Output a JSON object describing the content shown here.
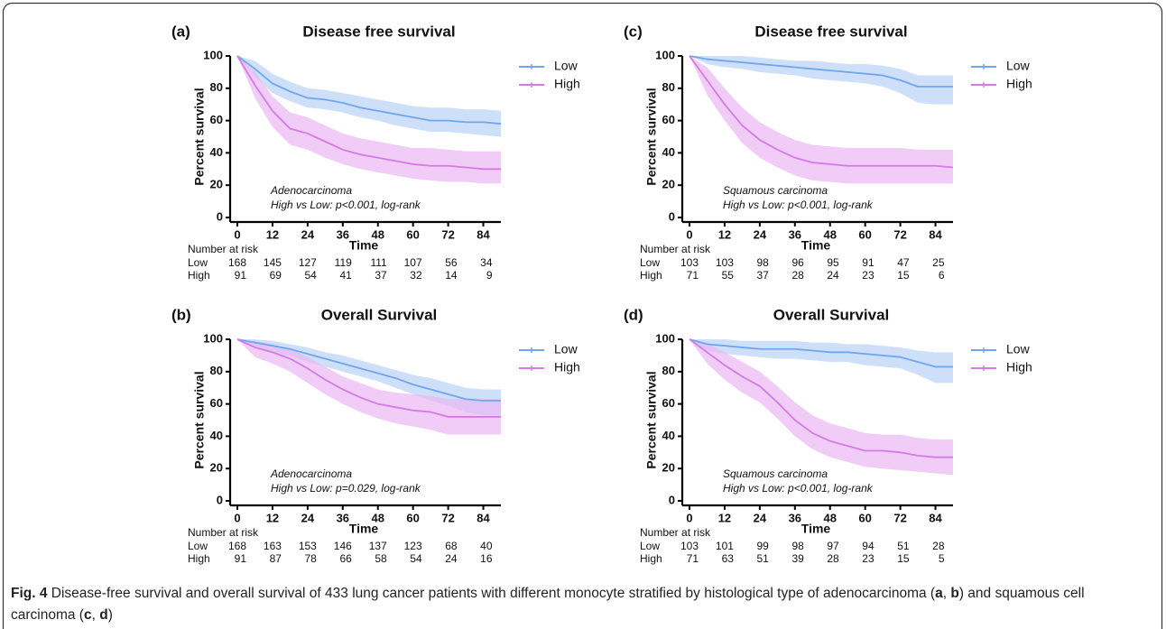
{
  "chart_data": [
    {
      "type": "line",
      "panel": "(a)",
      "title": "Disease free survival",
      "xlabel": "Time",
      "ylabel": "Percent survival",
      "annotations": [
        "Adenocarcinoma",
        "High vs Low: p<0.001, log-rank"
      ],
      "x": [
        0,
        6,
        12,
        18,
        24,
        30,
        36,
        42,
        48,
        54,
        60,
        66,
        72,
        78,
        84,
        90
      ],
      "xlim": [
        0,
        90
      ],
      "xticks": [
        0,
        12,
        24,
        36,
        48,
        60,
        72,
        84
      ],
      "ylim": [
        0,
        100
      ],
      "yticks": [
        0,
        20,
        40,
        60,
        80,
        100
      ],
      "legend": "right-outside",
      "series": [
        {
          "name": "Low",
          "color": "#6ea6ef",
          "band_color": "#b9d3f6",
          "values": [
            100,
            92,
            83,
            78,
            74,
            73,
            71,
            68,
            66,
            64,
            62,
            60,
            60,
            59,
            59,
            58
          ],
          "upper": [
            100,
            97,
            89,
            84,
            80,
            79,
            77,
            75,
            73,
            71,
            69,
            68,
            68,
            67,
            67,
            66
          ],
          "lower": [
            100,
            87,
            77,
            72,
            68,
            67,
            65,
            62,
            60,
            57,
            55,
            53,
            53,
            52,
            51,
            50
          ]
        },
        {
          "name": "High",
          "color": "#d47be6",
          "band_color": "#eab6f4",
          "values": [
            100,
            82,
            66,
            55,
            52,
            47,
            42,
            39,
            37,
            35,
            33,
            32,
            32,
            31,
            30,
            30
          ],
          "upper": [
            100,
            90,
            75,
            65,
            62,
            57,
            52,
            49,
            47,
            45,
            43,
            43,
            42,
            41,
            41,
            41
          ],
          "lower": [
            100,
            74,
            56,
            45,
            42,
            37,
            33,
            30,
            28,
            26,
            24,
            23,
            22,
            22,
            21,
            21
          ]
        }
      ],
      "risk_table": {
        "label": "Number at risk",
        "rows": [
          {
            "name": "Low",
            "values": [
              168,
              145,
              127,
              119,
              111,
              107,
              56,
              34
            ]
          },
          {
            "name": "High",
            "values": [
              91,
              69,
              54,
              41,
              37,
              32,
              14,
              9
            ]
          }
        ]
      }
    },
    {
      "type": "line",
      "panel": "(b)",
      "title": "Overall Survival",
      "xlabel": "Time",
      "ylabel": "Percent survival",
      "annotations": [
        "Adenocarcinoma",
        "High vs Low: p=0.029, log-rank"
      ],
      "x": [
        0,
        6,
        12,
        18,
        24,
        30,
        36,
        42,
        48,
        54,
        60,
        66,
        72,
        78,
        84,
        90
      ],
      "xlim": [
        0,
        90
      ],
      "xticks": [
        0,
        12,
        24,
        36,
        48,
        60,
        72,
        84
      ],
      "ylim": [
        0,
        100
      ],
      "yticks": [
        0,
        20,
        40,
        60,
        80,
        100
      ],
      "legend": "right-outside",
      "series": [
        {
          "name": "Low",
          "color": "#6ea6ef",
          "band_color": "#b9d3f6",
          "values": [
            100,
            98,
            96,
            94,
            91,
            88,
            85,
            82,
            79,
            76,
            72,
            69,
            66,
            63,
            62,
            62
          ],
          "upper": [
            100,
            100,
            99,
            97,
            95,
            92,
            90,
            87,
            84,
            81,
            78,
            76,
            73,
            70,
            69,
            69
          ],
          "lower": [
            100,
            95,
            92,
            90,
            86,
            83,
            80,
            77,
            74,
            70,
            66,
            62,
            59,
            55,
            53,
            53
          ]
        },
        {
          "name": "High",
          "color": "#d47be6",
          "band_color": "#eab6f4",
          "values": [
            100,
            95,
            92,
            88,
            82,
            75,
            69,
            64,
            60,
            58,
            56,
            55,
            52,
            52,
            52,
            52
          ],
          "upper": [
            100,
            99,
            97,
            94,
            89,
            83,
            77,
            73,
            69,
            67,
            66,
            65,
            63,
            63,
            63,
            63
          ],
          "lower": [
            100,
            89,
            85,
            80,
            73,
            66,
            60,
            55,
            51,
            48,
            46,
            44,
            41,
            41,
            41,
            41
          ]
        }
      ],
      "risk_table": {
        "label": "Number at risk",
        "rows": [
          {
            "name": "Low",
            "values": [
              168,
              163,
              153,
              146,
              137,
              123,
              68,
              40
            ]
          },
          {
            "name": "High",
            "values": [
              91,
              87,
              78,
              66,
              58,
              54,
              24,
              16
            ]
          }
        ]
      }
    },
    {
      "type": "line",
      "panel": "(c)",
      "title": "Disease free survival",
      "xlabel": "Time",
      "ylabel": "Percent survival",
      "annotations": [
        "Squamous carcinoma",
        "High vs Low: p<0.001, log-rank"
      ],
      "x": [
        0,
        6,
        12,
        18,
        24,
        30,
        36,
        42,
        48,
        54,
        60,
        66,
        72,
        78,
        84,
        90
      ],
      "xlim": [
        0,
        90
      ],
      "xticks": [
        0,
        12,
        24,
        36,
        48,
        60,
        72,
        84
      ],
      "ylim": [
        0,
        100
      ],
      "yticks": [
        0,
        20,
        40,
        60,
        80,
        100
      ],
      "legend": "right-outside",
      "series": [
        {
          "name": "Low",
          "color": "#6ea6ef",
          "band_color": "#b9d3f6",
          "values": [
            100,
            98,
            97,
            96,
            95,
            94,
            93,
            92,
            91,
            90,
            89,
            88,
            85,
            81,
            81,
            81
          ],
          "upper": [
            100,
            100,
            100,
            100,
            99,
            98,
            97,
            97,
            96,
            95,
            95,
            94,
            92,
            88,
            88,
            88
          ],
          "lower": [
            100,
            95,
            93,
            92,
            90,
            89,
            88,
            86,
            85,
            84,
            83,
            81,
            77,
            71,
            70,
            70
          ]
        },
        {
          "name": "High",
          "color": "#d47be6",
          "band_color": "#eab6f4",
          "values": [
            100,
            85,
            70,
            57,
            48,
            42,
            37,
            34,
            33,
            32,
            32,
            32,
            32,
            32,
            32,
            31
          ],
          "upper": [
            100,
            93,
            80,
            68,
            59,
            53,
            48,
            45,
            44,
            43,
            43,
            43,
            43,
            42,
            42,
            42
          ],
          "lower": [
            100,
            76,
            60,
            46,
            37,
            31,
            26,
            23,
            22,
            21,
            21,
            21,
            21,
            21,
            21,
            21
          ]
        }
      ],
      "risk_table": {
        "label": "Number at risk",
        "rows": [
          {
            "name": "Low",
            "values": [
              103,
              103,
              98,
              96,
              95,
              91,
              47,
              25
            ]
          },
          {
            "name": "High",
            "values": [
              71,
              55,
              37,
              28,
              24,
              23,
              15,
              6
            ]
          }
        ]
      }
    },
    {
      "type": "line",
      "panel": "(d)",
      "title": "Overall Survival",
      "xlabel": "Time",
      "ylabel": "Percent survival",
      "annotations": [
        "Squamous carcinoma",
        "High vs Low: p<0.001, log-rank"
      ],
      "x": [
        0,
        6,
        12,
        18,
        24,
        30,
        36,
        42,
        48,
        54,
        60,
        66,
        72,
        78,
        84,
        90
      ],
      "xlim": [
        0,
        90
      ],
      "xticks": [
        0,
        12,
        24,
        36,
        48,
        60,
        72,
        84
      ],
      "ylim": [
        0,
        100
      ],
      "yticks": [
        0,
        20,
        40,
        60,
        80,
        100
      ],
      "legend": "right-outside",
      "series": [
        {
          "name": "Low",
          "color": "#6ea6ef",
          "band_color": "#b9d3f6",
          "values": [
            100,
            97,
            96,
            95,
            94,
            94,
            94,
            93,
            92,
            92,
            91,
            90,
            89,
            86,
            83,
            83
          ],
          "upper": [
            100,
            100,
            100,
            99,
            99,
            99,
            99,
            98,
            98,
            97,
            97,
            96,
            95,
            93,
            92,
            92
          ],
          "lower": [
            100,
            93,
            91,
            90,
            89,
            88,
            88,
            87,
            86,
            86,
            84,
            83,
            82,
            78,
            73,
            73
          ]
        },
        {
          "name": "High",
          "color": "#d47be6",
          "band_color": "#eab6f4",
          "values": [
            100,
            92,
            84,
            77,
            71,
            61,
            50,
            42,
            37,
            34,
            31,
            31,
            30,
            28,
            27,
            27
          ],
          "upper": [
            100,
            98,
            92,
            86,
            80,
            71,
            61,
            53,
            48,
            45,
            42,
            41,
            41,
            39,
            38,
            38
          ],
          "lower": [
            100,
            85,
            75,
            67,
            61,
            51,
            40,
            32,
            27,
            24,
            21,
            20,
            19,
            18,
            17,
            16
          ]
        }
      ],
      "risk_table": {
        "label": "Number at risk",
        "rows": [
          {
            "name": "Low",
            "values": [
              103,
              101,
              99,
              98,
              97,
              94,
              51,
              28
            ]
          },
          {
            "name": "High",
            "values": [
              71,
              63,
              51,
              39,
              28,
              23,
              15,
              5
            ]
          }
        ]
      }
    }
  ],
  "caption": {
    "label": "Fig. 4",
    "parts": [
      " Disease-free survival and overall survival of 433 lung cancer patients with different monocyte stratified by histological type of adenocarcinoma (",
      "a",
      ", ",
      "b",
      ") and squamous cell carcinoma (",
      "c",
      ", ",
      "d",
      ")"
    ]
  }
}
